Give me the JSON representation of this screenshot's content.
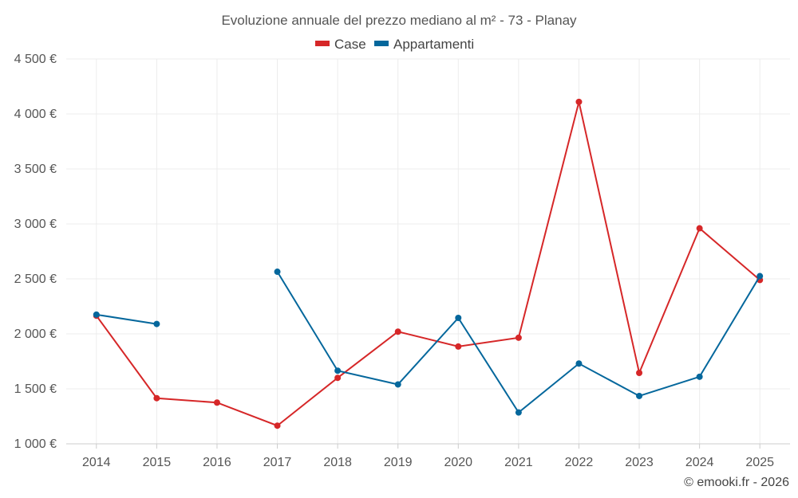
{
  "chart_data": {
    "type": "line",
    "title": "Evoluzione annuale del prezzo mediano al m² - 73 - Planay",
    "categories": [
      "2014",
      "2015",
      "2016",
      "2017",
      "2018",
      "2019",
      "2020",
      "2021",
      "2022",
      "2023",
      "2024",
      "2025"
    ],
    "series": [
      {
        "name": "Case",
        "color": "#d62728",
        "values": [
          2165,
          1415,
          1375,
          1165,
          1600,
          2020,
          1885,
          1965,
          4110,
          1645,
          2960,
          2490
        ]
      },
      {
        "name": "Appartamenti",
        "color": "#04679c",
        "values": [
          2175,
          2090,
          null,
          2565,
          1665,
          1540,
          2145,
          1285,
          1730,
          1435,
          1610,
          2525
        ]
      }
    ],
    "ylim": [
      1000,
      4500
    ],
    "yticks": [
      1000,
      1500,
      2000,
      2500,
      3000,
      3500,
      4000,
      4500
    ],
    "ytick_labels": [
      "1 000 €",
      "1 500 €",
      "2 000 €",
      "2 500 €",
      "3 000 €",
      "3 500 €",
      "4 000 €",
      "4 500 €"
    ],
    "legend_position": "top-center",
    "grid": true,
    "credit": "© emooki.fr - 2026"
  }
}
